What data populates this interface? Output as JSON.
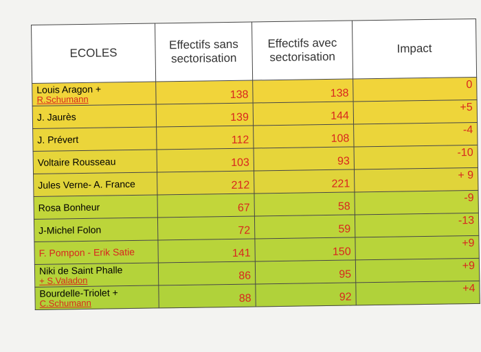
{
  "table": {
    "headers": [
      "ECOLES",
      "Effectifs sans sectorisation",
      "Effectifs avec sectorisation",
      "Impact"
    ],
    "rows": [
      {
        "name": "Louis Aragon +",
        "extra": "R.Schumann",
        "sans": 138,
        "avec": 138,
        "impact": "0",
        "color": "#f1d43a"
      },
      {
        "name": "J. Jaurès",
        "sans": 139,
        "avec": 144,
        "impact": "+5",
        "color": "#eed53a"
      },
      {
        "name": "J. Prévert",
        "sans": 112,
        "avec": 108,
        "impact": "-4",
        "color": "#ebd53a"
      },
      {
        "name": "Voltaire Rousseau",
        "sans": 103,
        "avec": 93,
        "impact": "-10",
        "color": "#e6d53a"
      },
      {
        "name": "Jules Verne- A. France",
        "sans": 212,
        "avec": 221,
        "impact": "+ 9",
        "color": "#e0d43a"
      },
      {
        "name": "Rosa Bonheur",
        "sans": 67,
        "avec": 58,
        "impact": "-9",
        "color": "#c2d63a"
      },
      {
        "name": "J-Michel Folon",
        "sans": 72,
        "avec": 59,
        "impact": "-13",
        "color": "#bcd53a"
      },
      {
        "name": "F. Pompon - Erik Satie",
        "name_color": "#d8261e",
        "sans": 141,
        "avec": 150,
        "impact": "+9",
        "color": "#b8d43a"
      },
      {
        "name": "Niki de Saint Phalle",
        "extra": "+ S.Valadon",
        "sans": 86,
        "avec": 95,
        "impact": "+9",
        "color": "#b4d33a"
      },
      {
        "name": "Bourdelle-Triolet +",
        "extra": "C.Schumann",
        "sans": 88,
        "avec": 92,
        "impact": "+4",
        "color": "#b0d23a"
      }
    ]
  }
}
